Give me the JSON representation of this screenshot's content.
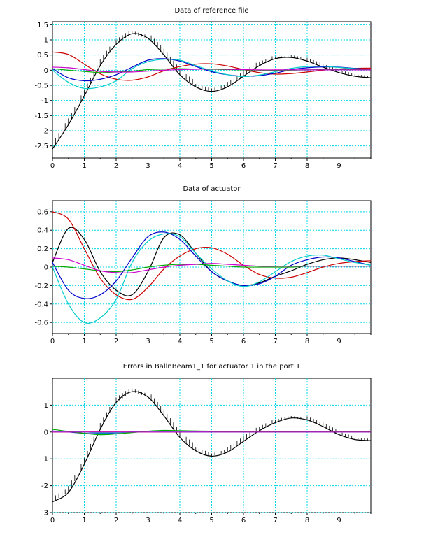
{
  "window": {
    "background": "#ffffff"
  },
  "chart_data": [
    {
      "type": "line",
      "title": "Data of reference file",
      "xlabel": "",
      "ylabel": "",
      "xlim": [
        0,
        10
      ],
      "ylim": [
        -2.9,
        1.6
      ],
      "x_ticks": [
        0,
        1,
        2,
        3,
        4,
        5,
        6,
        7,
        8,
        9
      ],
      "y_ticks": [
        -2.5,
        -2.0,
        -1.5,
        -1.0,
        -0.5,
        0.0,
        0.5,
        1.0,
        1.5
      ],
      "grid": true,
      "grid_color": "#00d8e8",
      "x": [
        0,
        0.5,
        1,
        1.5,
        2,
        2.5,
        3,
        3.5,
        4,
        4.5,
        5,
        5.5,
        6,
        6.5,
        7,
        7.5,
        8,
        8.5,
        9,
        9.5,
        10
      ],
      "series": [
        {
          "color": "#000000",
          "tick_marks": true,
          "values": [
            -2.6,
            -1.8,
            -0.85,
            0.15,
            0.85,
            1.2,
            1.05,
            0.5,
            -0.15,
            -0.55,
            -0.7,
            -0.55,
            -0.2,
            0.15,
            0.38,
            0.42,
            0.3,
            0.1,
            -0.08,
            -0.2,
            -0.25
          ]
        },
        {
          "color": "#cc0000",
          "values": [
            0.6,
            0.52,
            0.2,
            -0.12,
            -0.3,
            -0.33,
            -0.22,
            -0.02,
            0.12,
            0.2,
            0.21,
            0.14,
            0.02,
            -0.08,
            -0.13,
            -0.11,
            -0.06,
            0,
            0.04,
            0.06,
            0.07
          ]
        },
        {
          "color": "#0000cc",
          "values": [
            0.05,
            -0.25,
            -0.35,
            -0.3,
            -0.15,
            0.1,
            0.33,
            0.38,
            0.3,
            0.12,
            -0.05,
            -0.15,
            -0.2,
            -0.18,
            -0.1,
            0.02,
            0.08,
            0.11,
            0.1,
            0.06,
            0.02
          ]
        },
        {
          "color": "#00cccc",
          "values": [
            0,
            -0.4,
            -0.6,
            -0.55,
            -0.35,
            0.05,
            0.28,
            0.36,
            0.33,
            0.15,
            -0.02,
            -0.15,
            -0.21,
            -0.16,
            -0.05,
            0.06,
            0.12,
            0.13,
            0.09,
            0.05,
            0.02
          ]
        },
        {
          "color": "#00aa00",
          "values": [
            0.05,
            0.0,
            -0.04,
            -0.08,
            -0.06,
            -0.03,
            0.02,
            0.04,
            0.05,
            0.04,
            0.03,
            0.02,
            0.01,
            0,
            -0.01,
            0,
            0.01,
            0.02,
            0.02,
            0.02,
            0.02
          ]
        },
        {
          "color": "#cc00cc",
          "values": [
            0.1,
            0.08,
            0.02,
            -0.04,
            -0.06,
            -0.06,
            -0.03,
            0,
            0.02,
            0.03,
            0.04,
            0.03,
            0.02,
            0.01,
            0.01,
            0.01,
            0.01,
            0.01,
            0.01,
            0.01,
            0.01
          ]
        }
      ]
    },
    {
      "type": "line",
      "title": "Data of actuator",
      "xlabel": "",
      "ylabel": "",
      "xlim": [
        0,
        10
      ],
      "ylim": [
        -0.72,
        0.72
      ],
      "x_ticks": [
        0,
        1,
        2,
        3,
        4,
        5,
        6,
        7,
        8,
        9
      ],
      "y_ticks": [
        -0.6,
        -0.4,
        -0.2,
        0.0,
        0.2,
        0.4,
        0.6
      ],
      "grid": true,
      "grid_color": "#00d8e8",
      "x": [
        0,
        0.5,
        1,
        1.5,
        2,
        2.5,
        3,
        3.5,
        4,
        4.5,
        5,
        5.5,
        6,
        6.5,
        7,
        7.5,
        8,
        8.5,
        9,
        9.5,
        10
      ],
      "series": [
        {
          "color": "#000000",
          "values": [
            0.05,
            0.42,
            0.3,
            -0.05,
            -0.25,
            -0.3,
            -0.05,
            0.32,
            0.35,
            0.15,
            -0.05,
            -0.15,
            -0.2,
            -0.17,
            -0.1,
            -0.04,
            0.03,
            0.08,
            0.1,
            0.08,
            0.05
          ]
        },
        {
          "color": "#cc0000",
          "values": [
            0.6,
            0.52,
            0.2,
            -0.12,
            -0.3,
            -0.35,
            -0.22,
            -0.02,
            0.12,
            0.2,
            0.21,
            0.14,
            0.02,
            -0.08,
            -0.12,
            -0.11,
            -0.06,
            0,
            0.04,
            0.06,
            0.07
          ]
        },
        {
          "color": "#0000cc",
          "values": [
            0.05,
            -0.25,
            -0.34,
            -0.3,
            -0.15,
            0.1,
            0.33,
            0.38,
            0.3,
            0.12,
            -0.05,
            -0.15,
            -0.2,
            -0.18,
            -0.1,
            0.02,
            0.08,
            0.11,
            0.1,
            0.06,
            0.02
          ]
        },
        {
          "color": "#00cccc",
          "values": [
            0,
            -0.4,
            -0.6,
            -0.55,
            -0.35,
            0.05,
            0.28,
            0.36,
            0.33,
            0.15,
            -0.02,
            -0.15,
            -0.21,
            -0.16,
            -0.05,
            0.06,
            0.12,
            0.13,
            0.09,
            0.05,
            0.02
          ]
        },
        {
          "color": "#00aa00",
          "values": [
            0.01,
            0.0,
            -0.02,
            -0.04,
            -0.05,
            -0.03,
            0,
            0.02,
            0.03,
            0.03,
            0.02,
            0.01,
            0,
            0,
            0,
            0,
            0.01,
            0.01,
            0.01,
            0.01,
            0.01
          ]
        },
        {
          "color": "#cc00cc",
          "values": [
            0.1,
            0.08,
            0.02,
            -0.04,
            -0.06,
            -0.06,
            -0.03,
            0,
            0.02,
            0.03,
            0.04,
            0.03,
            0.02,
            0.01,
            0.01,
            0.01,
            0.01,
            0.01,
            0.01,
            0.01,
            0.01
          ]
        }
      ]
    },
    {
      "type": "line",
      "title": "Errors in BallnBeam1_1 for actuator 1 in the port 1",
      "xlabel": "",
      "ylabel": "",
      "xlim": [
        0,
        10
      ],
      "ylim": [
        -3,
        2
      ],
      "x_ticks": [
        0,
        1,
        2,
        3,
        4,
        5,
        6,
        7,
        8,
        9
      ],
      "y_ticks": [
        -3,
        -2,
        -1,
        0,
        1
      ],
      "grid": true,
      "grid_color": "#00d8e8",
      "x": [
        0,
        0.5,
        1,
        1.5,
        2,
        2.5,
        3,
        3.5,
        4,
        4.5,
        5,
        5.5,
        6,
        6.5,
        7,
        7.5,
        8,
        8.5,
        9,
        9.5,
        10
      ],
      "series": [
        {
          "color": "#000000",
          "tick_marks": true,
          "values": [
            -2.6,
            -2.25,
            -1.2,
            0.1,
            1.1,
            1.5,
            1.3,
            0.6,
            -0.2,
            -0.7,
            -0.9,
            -0.75,
            -0.35,
            0.05,
            0.35,
            0.52,
            0.45,
            0.2,
            -0.1,
            -0.28,
            -0.32
          ]
        },
        {
          "color": "#cc0000",
          "values": [
            0,
            0,
            0,
            0,
            0,
            0,
            0,
            0,
            0,
            0,
            0,
            0,
            0,
            0,
            0,
            0,
            0,
            0,
            0,
            0,
            0
          ]
        },
        {
          "color": "#0000cc",
          "values": [
            0.04,
            0,
            -0.05,
            -0.06,
            -0.03,
            0,
            0.02,
            0.02,
            0.01,
            0,
            0,
            0,
            0,
            0,
            0,
            0,
            0,
            0,
            0,
            0,
            0
          ]
        },
        {
          "color": "#00cccc",
          "values": [
            0.03,
            0.01,
            0,
            -0.03,
            -0.02,
            0,
            0.01,
            0.02,
            0.01,
            0,
            0,
            0,
            0,
            0,
            0,
            0,
            0,
            0,
            0,
            0,
            0
          ]
        },
        {
          "color": "#00aa00",
          "values": [
            0.1,
            0.02,
            -0.05,
            -0.1,
            -0.07,
            -0.02,
            0.03,
            0.06,
            0.05,
            0.04,
            0.03,
            0.02,
            0.01,
            0.01,
            0.01,
            0.02,
            0.03,
            0.03,
            0.02,
            0.02,
            0.02
          ]
        },
        {
          "color": "#cc00cc",
          "values": [
            0,
            0,
            0,
            0,
            0,
            0,
            0,
            0,
            0,
            0,
            0,
            0,
            0,
            0,
            0,
            0,
            0,
            0,
            0,
            0,
            0
          ]
        }
      ]
    }
  ]
}
